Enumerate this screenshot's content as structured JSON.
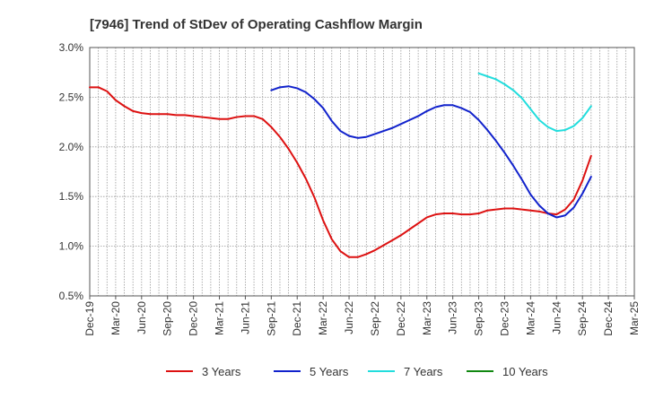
{
  "chart_data": {
    "type": "line",
    "title": "[7946]  Trend of StDev of Operating Cashflow Margin",
    "xlabel": "",
    "ylabel": "",
    "x_labels": [
      "Dec-19",
      "Mar-20",
      "Jun-20",
      "Sep-20",
      "Dec-20",
      "Mar-21",
      "Jun-21",
      "Sep-21",
      "Dec-21",
      "Mar-22",
      "Jun-22",
      "Sep-22",
      "Dec-22",
      "Mar-23",
      "Jun-23",
      "Sep-23",
      "Dec-23",
      "Mar-24",
      "Jun-24",
      "Sep-24",
      "Dec-24",
      "Mar-25"
    ],
    "y_ticks": [
      "0.5%",
      "1.0%",
      "1.5%",
      "2.0%",
      "2.5%",
      "3.0%"
    ],
    "ylim": [
      0.5,
      3.0
    ],
    "grid": true,
    "legend_position": "bottom",
    "colors": {
      "3 Years": "#dd1111",
      "5 Years": "#1122cc",
      "7 Years": "#22dddd",
      "10 Years": "#118811"
    },
    "series": [
      {
        "name": "3 Years",
        "color": "#dd1111",
        "points": [
          [
            "2019-12",
            2.6
          ],
          [
            "2020-01",
            2.6
          ],
          [
            "2020-02",
            2.56
          ],
          [
            "2020-03",
            2.47
          ],
          [
            "2020-04",
            2.41
          ],
          [
            "2020-05",
            2.36
          ],
          [
            "2020-06",
            2.34
          ],
          [
            "2020-07",
            2.33
          ],
          [
            "2020-08",
            2.33
          ],
          [
            "2020-09",
            2.33
          ],
          [
            "2020-10",
            2.32
          ],
          [
            "2020-11",
            2.32
          ],
          [
            "2020-12",
            2.31
          ],
          [
            "2021-01",
            2.3
          ],
          [
            "2021-02",
            2.29
          ],
          [
            "2021-03",
            2.28
          ],
          [
            "2021-04",
            2.28
          ],
          [
            "2021-05",
            2.3
          ],
          [
            "2021-06",
            2.31
          ],
          [
            "2021-07",
            2.31
          ],
          [
            "2021-08",
            2.28
          ],
          [
            "2021-09",
            2.2
          ],
          [
            "2021-10",
            2.1
          ],
          [
            "2021-11",
            1.98
          ],
          [
            "2021-12",
            1.84
          ],
          [
            "2022-01",
            1.68
          ],
          [
            "2022-02",
            1.49
          ],
          [
            "2022-03",
            1.26
          ],
          [
            "2022-04",
            1.07
          ],
          [
            "2022-05",
            0.95
          ],
          [
            "2022-06",
            0.89
          ],
          [
            "2022-07",
            0.89
          ],
          [
            "2022-08",
            0.92
          ],
          [
            "2022-09",
            0.96
          ],
          [
            "2022-10",
            1.01
          ],
          [
            "2022-11",
            1.06
          ],
          [
            "2022-12",
            1.11
          ],
          [
            "2023-01",
            1.17
          ],
          [
            "2023-02",
            1.23
          ],
          [
            "2023-03",
            1.29
          ],
          [
            "2023-04",
            1.32
          ],
          [
            "2023-05",
            1.33
          ],
          [
            "2023-06",
            1.33
          ],
          [
            "2023-07",
            1.32
          ],
          [
            "2023-08",
            1.32
          ],
          [
            "2023-09",
            1.33
          ],
          [
            "2023-10",
            1.36
          ],
          [
            "2023-11",
            1.37
          ],
          [
            "2023-12",
            1.38
          ],
          [
            "2024-01",
            1.38
          ],
          [
            "2024-02",
            1.37
          ],
          [
            "2024-03",
            1.36
          ],
          [
            "2024-04",
            1.35
          ],
          [
            "2024-05",
            1.33
          ],
          [
            "2024-06",
            1.32
          ],
          [
            "2024-07",
            1.37
          ],
          [
            "2024-08",
            1.47
          ],
          [
            "2024-09",
            1.66
          ],
          [
            "2024-10",
            1.91
          ]
        ]
      },
      {
        "name": "5 Years",
        "color": "#1122cc",
        "points": [
          [
            "2021-09",
            2.57
          ],
          [
            "2021-10",
            2.6
          ],
          [
            "2021-11",
            2.61
          ],
          [
            "2021-12",
            2.59
          ],
          [
            "2022-01",
            2.55
          ],
          [
            "2022-02",
            2.48
          ],
          [
            "2022-03",
            2.39
          ],
          [
            "2022-04",
            2.26
          ],
          [
            "2022-05",
            2.16
          ],
          [
            "2022-06",
            2.11
          ],
          [
            "2022-07",
            2.09
          ],
          [
            "2022-08",
            2.1
          ],
          [
            "2022-09",
            2.13
          ],
          [
            "2022-10",
            2.16
          ],
          [
            "2022-11",
            2.19
          ],
          [
            "2022-12",
            2.23
          ],
          [
            "2023-01",
            2.27
          ],
          [
            "2023-02",
            2.31
          ],
          [
            "2023-03",
            2.36
          ],
          [
            "2023-04",
            2.4
          ],
          [
            "2023-05",
            2.42
          ],
          [
            "2023-06",
            2.42
          ],
          [
            "2023-07",
            2.39
          ],
          [
            "2023-08",
            2.35
          ],
          [
            "2023-09",
            2.27
          ],
          [
            "2023-10",
            2.17
          ],
          [
            "2023-11",
            2.06
          ],
          [
            "2023-12",
            1.94
          ],
          [
            "2024-01",
            1.81
          ],
          [
            "2024-02",
            1.67
          ],
          [
            "2024-03",
            1.52
          ],
          [
            "2024-04",
            1.41
          ],
          [
            "2024-05",
            1.33
          ],
          [
            "2024-06",
            1.29
          ],
          [
            "2024-07",
            1.31
          ],
          [
            "2024-08",
            1.39
          ],
          [
            "2024-09",
            1.53
          ],
          [
            "2024-10",
            1.7
          ]
        ]
      },
      {
        "name": "7 Years",
        "color": "#22dddd",
        "points": [
          [
            "2023-09",
            2.74
          ],
          [
            "2023-10",
            2.71
          ],
          [
            "2023-11",
            2.68
          ],
          [
            "2023-12",
            2.63
          ],
          [
            "2024-01",
            2.57
          ],
          [
            "2024-02",
            2.49
          ],
          [
            "2024-03",
            2.38
          ],
          [
            "2024-04",
            2.27
          ],
          [
            "2024-05",
            2.2
          ],
          [
            "2024-06",
            2.16
          ],
          [
            "2024-07",
            2.17
          ],
          [
            "2024-08",
            2.21
          ],
          [
            "2024-09",
            2.29
          ],
          [
            "2024-10",
            2.41
          ]
        ]
      },
      {
        "name": "10 Years",
        "color": "#118811",
        "points": []
      }
    ]
  }
}
